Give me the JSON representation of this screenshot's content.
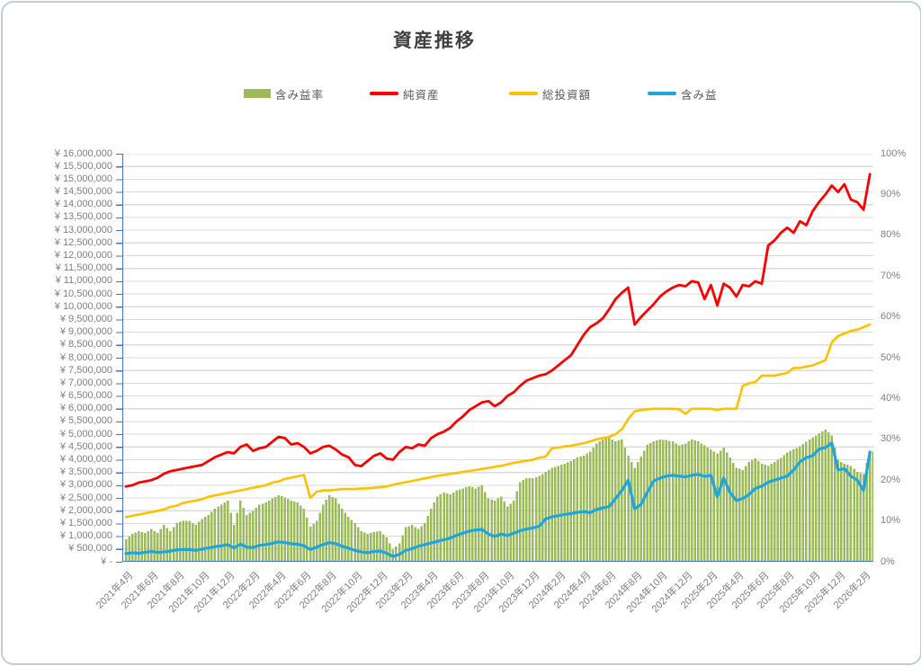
{
  "title": "資産推移",
  "legend": {
    "items": [
      {
        "label": "含み益率",
        "name": "gain-rate",
        "marker": "bar",
        "color": "#9BBB59",
        "x": 268
      },
      {
        "label": "純資産",
        "name": "net-assets",
        "marker": "line",
        "color": "#FE0000",
        "x": 408
      },
      {
        "label": "総投資額",
        "name": "total-investment",
        "marker": "line",
        "color": "#FFC000",
        "x": 563
      },
      {
        "label": "含み益",
        "name": "unrealized-gain",
        "marker": "line",
        "color": "#1FA5DE",
        "x": 717
      }
    ]
  },
  "chart_data": {
    "type": "combo",
    "note": "values estimated from pixels; 2 points per month from 2021-04 to 2026-02 (118 points)",
    "grid": "horizontal, every 500000 JPY",
    "left_axis": {
      "unit": "JPY",
      "min": 0,
      "max": 16000000,
      "step": 500000,
      "tick_labels": [
        "¥ 16,000,000",
        "¥ 15,500,000",
        "¥ 15,000,000",
        "¥ 14,500,000",
        "¥ 14,000,000",
        "¥ 13,500,000",
        "¥ 13,000,000",
        "¥ 12,500,000",
        "¥ 12,000,000",
        "¥ 11,500,000",
        "¥ 11,000,000",
        "¥ 10,500,000",
        "¥ 10,000,000",
        "¥ 9,500,000",
        "¥ 9,000,000",
        "¥ 8,500,000",
        "¥ 8,000,000",
        "¥ 7,500,000",
        "¥ 7,000,000",
        "¥ 6,500,000",
        "¥ 6,000,000",
        "¥ 5,500,000",
        "¥ 5,000,000",
        "¥ 4,500,000",
        "¥ 4,000,000",
        "¥ 3,500,000",
        "¥ 3,000,000",
        "¥ 2,500,000",
        "¥ 2,000,000",
        "¥ 1,500,000",
        "¥ 1,000,000",
        "¥ 500,000",
        "¥ -"
      ]
    },
    "right_axis": {
      "unit": "percent",
      "min": 0,
      "max": 100,
      "step": 10,
      "tick_labels": [
        "100%",
        "90%",
        "80%",
        "70%",
        "60%",
        "50%",
        "40%",
        "30%",
        "20%",
        "10%",
        "0%"
      ]
    },
    "x_tick_labels": [
      "2021年4月",
      "2021年6月",
      "2021年8月",
      "2021年10月",
      "2021年12月",
      "2022年2月",
      "2022年4月",
      "2022年6月",
      "2022年8月",
      "2022年10月",
      "2022年12月",
      "2023年2月",
      "2023年4月",
      "2023年6月",
      "2023年8月",
      "2023年10月",
      "2023年12月",
      "2024年2月",
      "2024年4月",
      "2024年6月",
      "2024年8月",
      "2024年10月",
      "2024年12月",
      "2025年2月",
      "2025年4月",
      "2025年6月",
      "2025年8月",
      "2025年10月",
      "2025年12月",
      "2026年2月"
    ],
    "series": [
      {
        "name": "含み益率",
        "type": "bar",
        "axis": "right",
        "unit": "%",
        "color": "#9BBB59",
        "values": [
          5.5,
          6.8,
          7.5,
          7.0,
          8.0,
          7.0,
          9.0,
          7.5,
          9.5,
          10.0,
          10.0,
          9.0,
          10.5,
          11.5,
          13.0,
          14.0,
          15.0,
          9.0,
          15.0,
          11.5,
          12.5,
          14.0,
          14.5,
          15.5,
          16.3,
          15.8,
          15.0,
          14.5,
          13.0,
          8.6,
          10.0,
          14.0,
          16.3,
          15.5,
          13.0,
          11.0,
          9.5,
          7.5,
          6.8,
          7.3,
          7.5,
          6.0,
          3.0,
          4.5,
          8.5,
          9.0,
          8.0,
          9.5,
          13.0,
          16.0,
          17.0,
          16.5,
          17.5,
          18.0,
          18.5,
          18.0,
          18.7,
          15.5,
          15.0,
          16.0,
          13.5,
          15.0,
          19.5,
          20.5,
          20.5,
          21.0,
          22.0,
          23.0,
          23.5,
          24.0,
          24.7,
          25.5,
          26.0,
          27.0,
          29.0,
          30.0,
          30.5,
          29.5,
          30.0,
          26.0,
          23.0,
          25.8,
          28.6,
          29.5,
          30.0,
          29.8,
          29.5,
          28.5,
          29.0,
          30.0,
          29.5,
          28.5,
          27.5,
          26.5,
          28.0,
          25.5,
          23.0,
          22.5,
          24.5,
          25.3,
          24.0,
          23.5,
          24.5,
          25.4,
          26.8,
          27.5,
          28.3,
          29.4,
          30.5,
          31.5,
          32.4,
          31.0,
          25.0,
          24.0,
          23.5,
          22.0,
          21.5,
          27.0
        ]
      },
      {
        "name": "純資産",
        "type": "line",
        "axis": "left",
        "unit": "JPY_million",
        "color": "#FE0000",
        "values": [
          2.95,
          3.0,
          3.1,
          3.15,
          3.2,
          3.3,
          3.45,
          3.55,
          3.6,
          3.65,
          3.7,
          3.75,
          3.8,
          3.95,
          4.1,
          4.2,
          4.3,
          4.25,
          4.5,
          4.6,
          4.35,
          4.45,
          4.5,
          4.7,
          4.9,
          4.85,
          4.6,
          4.65,
          4.5,
          4.25,
          4.35,
          4.5,
          4.55,
          4.4,
          4.2,
          4.1,
          3.8,
          3.75,
          3.95,
          4.15,
          4.25,
          4.05,
          4.0,
          4.3,
          4.5,
          4.45,
          4.6,
          4.55,
          4.85,
          5.0,
          5.1,
          5.25,
          5.5,
          5.7,
          5.95,
          6.1,
          6.25,
          6.3,
          6.1,
          6.25,
          6.5,
          6.65,
          6.9,
          7.1,
          7.2,
          7.3,
          7.35,
          7.5,
          7.7,
          7.9,
          8.1,
          8.5,
          8.9,
          9.2,
          9.35,
          9.55,
          9.9,
          10.3,
          10.55,
          10.75,
          9.3,
          9.6,
          9.85,
          10.1,
          10.4,
          10.6,
          10.75,
          10.85,
          10.8,
          11.0,
          10.95,
          10.3,
          10.85,
          10.05,
          10.9,
          10.75,
          10.4,
          10.85,
          10.8,
          11.0,
          10.9,
          12.4,
          12.6,
          12.9,
          13.1,
          12.9,
          13.35,
          13.2,
          13.75,
          14.1,
          14.4,
          14.75,
          14.5,
          14.8,
          14.2,
          14.1,
          13.8,
          15.2
        ]
      },
      {
        "name": "総投資額",
        "type": "line",
        "axis": "left",
        "unit": "JPY_million",
        "color": "#FFC000",
        "values": [
          1.75,
          1.8,
          1.85,
          1.9,
          1.95,
          2.0,
          2.05,
          2.15,
          2.2,
          2.3,
          2.35,
          2.4,
          2.45,
          2.55,
          2.6,
          2.65,
          2.7,
          2.75,
          2.8,
          2.85,
          2.9,
          2.95,
          3.0,
          3.1,
          3.15,
          3.25,
          3.3,
          3.35,
          3.4,
          2.5,
          2.75,
          2.8,
          2.8,
          2.82,
          2.85,
          2.85,
          2.85,
          2.87,
          2.88,
          2.9,
          2.92,
          2.95,
          3.02,
          3.07,
          3.12,
          3.17,
          3.22,
          3.27,
          3.32,
          3.37,
          3.4,
          3.44,
          3.48,
          3.52,
          3.56,
          3.6,
          3.64,
          3.68,
          3.72,
          3.76,
          3.82,
          3.88,
          3.92,
          3.96,
          4.0,
          4.08,
          4.12,
          4.45,
          4.48,
          4.52,
          4.55,
          4.6,
          4.65,
          4.72,
          4.8,
          4.85,
          4.9,
          5.0,
          5.2,
          5.6,
          5.9,
          5.95,
          5.98,
          6.0,
          6.0,
          6.0,
          6.0,
          5.98,
          5.8,
          6.0,
          6.0,
          6.0,
          6.0,
          5.95,
          6.0,
          6.0,
          6.0,
          6.9,
          7.0,
          7.05,
          7.3,
          7.3,
          7.3,
          7.35,
          7.4,
          7.6,
          7.6,
          7.65,
          7.7,
          7.8,
          7.9,
          8.6,
          8.85,
          8.95,
          9.05,
          9.1,
          9.2,
          9.3
        ]
      },
      {
        "name": "含み益",
        "type": "line",
        "axis": "right",
        "unit": "%",
        "color": "#1FA5DE",
        "values": [
          2.0,
          2.2,
          2.1,
          2.3,
          2.5,
          2.3,
          2.4,
          2.6,
          2.9,
          3.0,
          3.0,
          2.8,
          3.1,
          3.4,
          3.7,
          3.9,
          4.2,
          3.4,
          4.3,
          3.6,
          3.5,
          4.0,
          4.2,
          4.5,
          4.9,
          4.7,
          4.4,
          4.3,
          3.9,
          3.0,
          3.6,
          4.2,
          4.7,
          4.4,
          3.8,
          3.3,
          2.8,
          2.4,
          2.2,
          2.5,
          2.6,
          2.1,
          1.3,
          1.8,
          2.8,
          3.2,
          3.8,
          4.2,
          4.6,
          5.0,
          5.4,
          5.8,
          6.5,
          7.0,
          7.5,
          7.8,
          7.9,
          6.8,
          6.2,
          6.8,
          6.4,
          7.0,
          7.6,
          8.0,
          8.3,
          8.7,
          10.5,
          11.0,
          11.3,
          11.6,
          11.8,
          12.1,
          12.3,
          12.0,
          12.8,
          13.2,
          13.5,
          15.5,
          17.5,
          20.0,
          13.0,
          14.0,
          17.0,
          19.8,
          20.5,
          21.0,
          21.2,
          21.0,
          20.8,
          21.2,
          21.4,
          20.9,
          21.2,
          15.9,
          20.5,
          17.0,
          15.0,
          15.5,
          16.5,
          18.0,
          18.5,
          19.5,
          20.0,
          20.5,
          21.0,
          22.5,
          24.5,
          25.5,
          26.0,
          27.6,
          28.0,
          29.1,
          22.5,
          22.8,
          21.0,
          20.0,
          17.5,
          26.9
        ]
      }
    ]
  }
}
